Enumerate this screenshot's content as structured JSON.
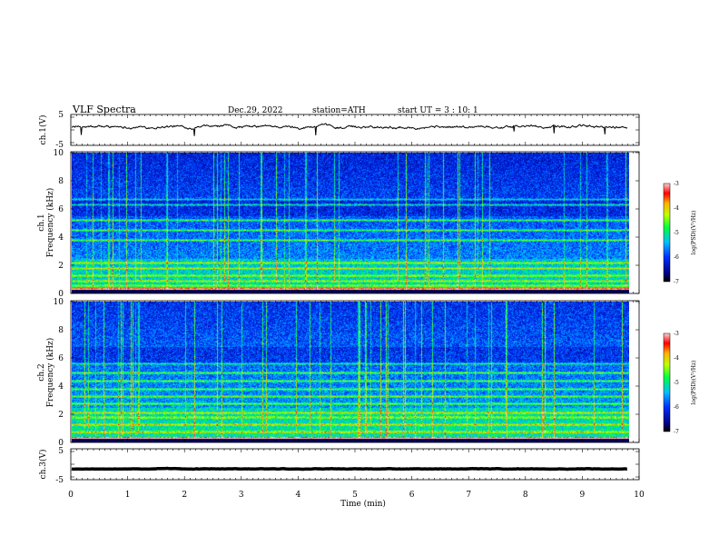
{
  "header": {
    "title": "VLF  Spectra",
    "date": "Dec.29, 2022",
    "station": "station=ATH",
    "start_ut": "start  UT  =    3  : 10: 1"
  },
  "chart_data": [
    {
      "type": "line",
      "name": "ch1-waveform",
      "ylabel": "ch.1(V)",
      "ylim": [
        -5,
        5
      ],
      "yticks": [
        "5",
        "-5"
      ],
      "x_range_min": [
        0,
        9.8
      ],
      "approx_level_v": 1.0
    },
    {
      "type": "heatmap",
      "name": "ch1-spectrogram",
      "ylabel": "ch.1\nFrequency  (kHz)",
      "ylabel_lines": [
        "ch.1",
        "Frequency  (kHz)"
      ],
      "ylim_khz": [
        0,
        10
      ],
      "yticks": [
        "0",
        "2",
        "4",
        "6",
        "8",
        "10"
      ],
      "x_range_min": [
        0,
        9.8
      ],
      "colorbar": {
        "label": "log(PSD)(V²/Hz)",
        "range": [
          -7,
          -3
        ],
        "ticks": [
          "-3",
          "-4",
          "-5",
          "-6",
          "-7"
        ]
      },
      "strong_bands_khz": [
        0.3,
        0.6,
        0.9,
        1.3,
        1.8,
        2.2,
        3.8,
        4.5,
        5.2,
        6.3,
        6.7
      ]
    },
    {
      "type": "heatmap",
      "name": "ch2-spectrogram",
      "ylabel": "ch.2\nFrequency  (kHz)",
      "ylabel_lines": [
        "ch.2",
        "Frequency  (kHz)"
      ],
      "ylim_khz": [
        0,
        10
      ],
      "yticks": [
        "0",
        "2",
        "4",
        "6",
        "8",
        "10"
      ],
      "x_range_min": [
        0,
        9.8
      ],
      "colorbar": {
        "label": "log(PSD)(V²/Hz)",
        "range": [
          -7,
          -3
        ],
        "ticks": [
          "-3",
          "-4",
          "-5",
          "-6",
          "-7"
        ]
      },
      "strong_bands_khz": [
        0.3,
        0.8,
        1.3,
        1.8,
        2.1,
        2.8,
        3.3,
        3.8,
        4.4,
        5.0,
        5.6
      ]
    },
    {
      "type": "line",
      "name": "ch3-waveform",
      "ylabel": "ch.3(V)",
      "ylim": [
        -5,
        5
      ],
      "yticks": [
        "5",
        "-5"
      ],
      "x_range_min": [
        0,
        9.8
      ],
      "approx_level_v": -1.5
    }
  ],
  "x_axis": {
    "label": "Time  (min)",
    "range": [
      0,
      10
    ],
    "ticks": [
      "0",
      "1",
      "2",
      "3",
      "4",
      "5",
      "6",
      "7",
      "8",
      "9",
      "10"
    ]
  },
  "colors": {
    "spectrum_low": "#000020",
    "spectrum_mid": "#0040e0",
    "spectrum_high": "#00ff60",
    "spectrum_peak": "#ff2020"
  }
}
